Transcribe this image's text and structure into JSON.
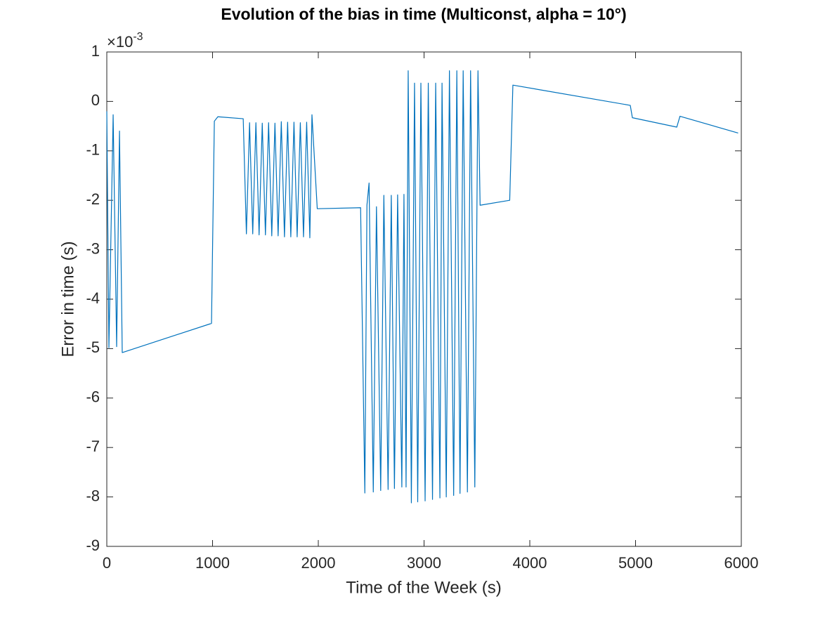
{
  "chart_data": {
    "type": "line",
    "title": "Evolution of the bias in time (Multiconst, alpha = 10°)",
    "x_label": "Time of the Week (s)",
    "y_label": "Error in time (s)",
    "y_multiplier_base": "×10",
    "y_multiplier_exponent": "-3",
    "color": "#0072bd",
    "x": [
      0,
      20,
      60,
      93,
      120,
      146,
      990,
      1017,
      1050,
      1290,
      1320,
      1350,
      1380,
      1410,
      1440,
      1470,
      1500,
      1530,
      1560,
      1590,
      1620,
      1650,
      1680,
      1710,
      1740,
      1770,
      1800,
      1830,
      1860,
      1890,
      1920,
      1940,
      1990,
      2400,
      2440,
      2460,
      2480,
      2520,
      2550,
      2590,
      2620,
      2660,
      2690,
      2720,
      2750,
      2790,
      2810,
      2830,
      2850,
      2880,
      2910,
      2940,
      2970,
      3010,
      3040,
      3080,
      3110,
      3150,
      3170,
      3210,
      3240,
      3280,
      3310,
      3340,
      3370,
      3410,
      3440,
      3480,
      3510,
      3530,
      3810,
      3840,
      4950,
      4970,
      5390,
      5420,
      5970
    ],
    "values": [
      -0.2,
      -4.98,
      -0.27,
      -4.96,
      -0.6,
      -5.08,
      -4.49,
      -0.4,
      -0.31,
      -0.35,
      -2.68,
      -0.43,
      -2.68,
      -0.43,
      -2.7,
      -0.44,
      -2.7,
      -0.43,
      -2.72,
      -0.44,
      -2.72,
      -0.41,
      -2.74,
      -0.42,
      -2.74,
      -0.42,
      -2.74,
      -0.43,
      -2.74,
      -0.42,
      -2.76,
      -0.27,
      -2.17,
      -2.15,
      -7.92,
      -2.1,
      -1.65,
      -7.9,
      -2.13,
      -7.87,
      -1.9,
      -7.85,
      -1.9,
      -7.83,
      -1.89,
      -7.8,
      -1.88,
      -7.8,
      0.62,
      -8.12,
      0.37,
      -8.1,
      0.37,
      -8.08,
      0.37,
      -8.05,
      0.37,
      -8.02,
      0.37,
      -8,
      0.62,
      -7.97,
      0.62,
      -7.93,
      0.62,
      -7.9,
      0.62,
      -7.8,
      0.62,
      -2.1,
      -2.0,
      0.33,
      -0.08,
      -0.33,
      -0.52,
      -0.3,
      -0.64
    ],
    "xlim": [
      0,
      6000
    ],
    "ylim": [
      -9,
      1
    ],
    "xticks": [
      0,
      1000,
      2000,
      3000,
      4000,
      5000,
      6000
    ],
    "yticks": [
      1,
      0,
      -1,
      -2,
      -3,
      -4,
      -5,
      -6,
      -7,
      -8,
      -9
    ]
  }
}
